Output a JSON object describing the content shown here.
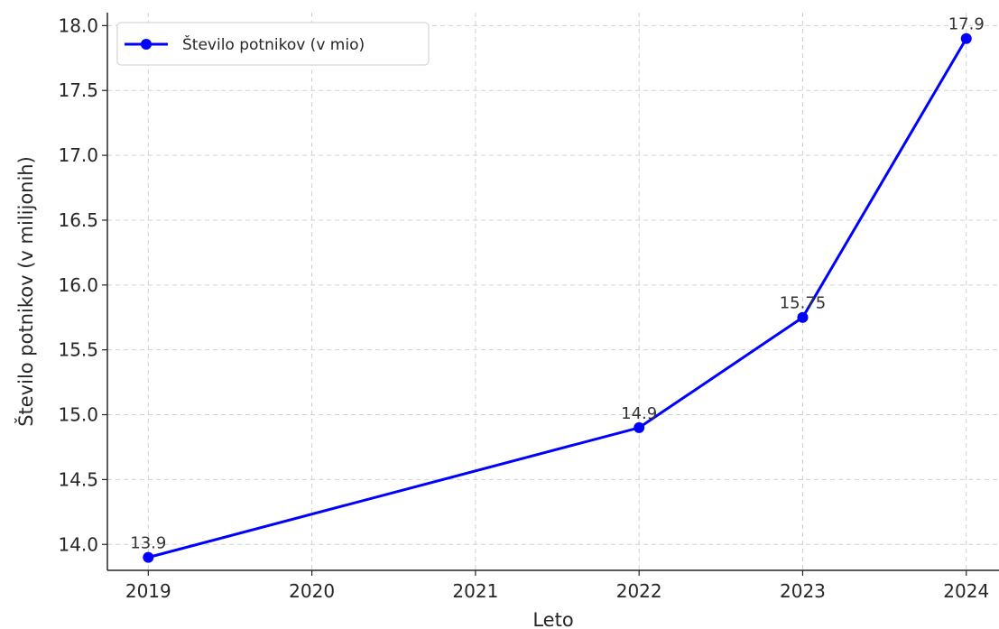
{
  "chart_data": {
    "type": "line",
    "title": "",
    "xlabel": "Leto",
    "ylabel": "Število potnikov (v milijonih)",
    "x": [
      2019,
      2022,
      2023,
      2024
    ],
    "x_ticks": [
      "2019",
      "2020",
      "2021",
      "2022",
      "2023",
      "2024"
    ],
    "xlim": [
      2018.75,
      2024.2
    ],
    "ylim": [
      13.8,
      18.1
    ],
    "y_ticks": [
      "14.0",
      "14.5",
      "15.0",
      "15.5",
      "16.0",
      "16.5",
      "17.0",
      "17.5",
      "18.0"
    ],
    "grid": true,
    "legend_position": "top-left",
    "series": [
      {
        "name": "Število potnikov (v mio)",
        "color": "#0000ff",
        "marker": "circle",
        "values": [
          13.9,
          14.9,
          15.75,
          17.9
        ],
        "labels": [
          "13.9",
          "14.9",
          "15.75",
          "17.9"
        ]
      }
    ]
  }
}
